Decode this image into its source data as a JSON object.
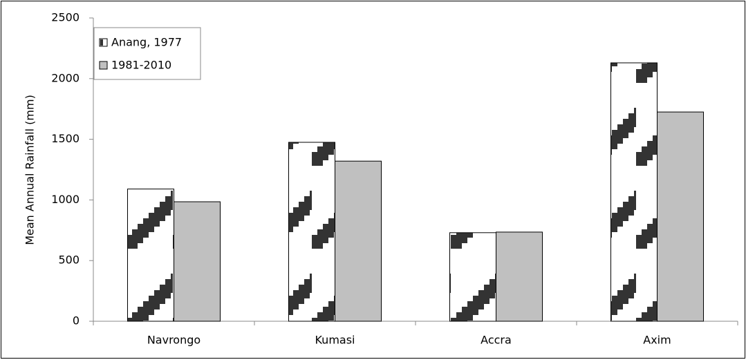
{
  "chart_data": {
    "type": "bar",
    "y_label": "Mean Annual Rainfall (mm)",
    "categories": [
      "Navrongo",
      "Kumasi",
      "Accra",
      "Axim"
    ],
    "series": [
      {
        "name": "Anang, 1977",
        "color": "#ffffff",
        "hatch": "#333333",
        "values": [
          1090,
          1475,
          730,
          2130
        ]
      },
      {
        "name": "1981-2010",
        "color": "#c0c0c0",
        "values": [
          985,
          1320,
          735,
          1725
        ]
      }
    ],
    "ylim": [
      0,
      2500
    ],
    "yticks": [
      0,
      500,
      1000,
      1500,
      2000,
      2500
    ],
    "grid": false,
    "legend": "upper left"
  }
}
